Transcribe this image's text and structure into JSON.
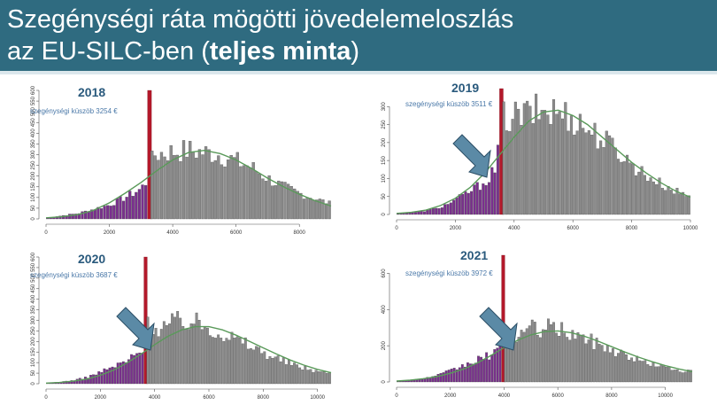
{
  "title": {
    "line1": "Szegénységi ráta mögötti jövedelemeloszlás",
    "line2_prefix": "az EU-SILC-ben (",
    "line2_bold": "teljes minta",
    "line2_suffix": ")"
  },
  "colors": {
    "banner": "#2f6b80",
    "below_threshold": "#7a2f8e",
    "above_threshold": "#8c8c8c",
    "threshold_bar": "#b3182a",
    "density_curve": "#5a9a5a",
    "arrow": "#5b8aa6"
  },
  "chart_data": [
    {
      "type": "bar",
      "year": "2018",
      "threshold_label": "szegénységi küszöb 3254 €",
      "threshold": 3254,
      "xlim": [
        0,
        9000
      ],
      "ylim": [
        0,
        600
      ],
      "x_ticks": [
        0,
        2000,
        4000,
        6000,
        8000
      ],
      "y_ticks": [
        0,
        50,
        100,
        150,
        200,
        250,
        300,
        350,
        400,
        450,
        500,
        550,
        600
      ],
      "bin_width": 100,
      "threshold_bar_value": 600,
      "arrow": false,
      "profile_x": [
        -200,
        500,
        1000,
        1500,
        2000,
        2500,
        3000,
        3200,
        3400,
        3800,
        4500,
        5000,
        5500,
        6000,
        6500,
        7000,
        7500,
        8000,
        8500,
        9000
      ],
      "profile_y": [
        0,
        15,
        25,
        45,
        65,
        100,
        140,
        180,
        300,
        310,
        320,
        310,
        300,
        270,
        240,
        190,
        150,
        120,
        95,
        70
      ],
      "curve_x": [
        0,
        500,
        1000,
        1500,
        2000,
        2500,
        3000,
        3500,
        4000,
        4500,
        5000,
        5500,
        6000,
        6500,
        7000,
        7500,
        8000,
        8500,
        9000
      ],
      "curve_y": [
        5,
        10,
        20,
        40,
        75,
        120,
        170,
        225,
        275,
        310,
        320,
        305,
        275,
        235,
        190,
        150,
        115,
        85,
        60
      ]
    },
    {
      "type": "bar",
      "year": "2019",
      "threshold_label": "szegénységi küszöb 3511 €",
      "threshold": 3511,
      "xlim": [
        0,
        10000
      ],
      "ylim": [
        0,
        350
      ],
      "x_ticks": [
        0,
        2000,
        4000,
        6000,
        8000,
        10000
      ],
      "y_ticks": [
        0,
        50,
        100,
        150,
        200,
        250,
        300
      ],
      "bin_width": 100,
      "threshold_bar_value": 350,
      "arrow": true,
      "profile_x": [
        -200,
        500,
        1000,
        1500,
        2000,
        2500,
        3000,
        3400,
        3600,
        4000,
        4500,
        5000,
        5500,
        6000,
        6500,
        7000,
        7500,
        8000,
        8500,
        9000,
        9500,
        10000
      ],
      "profile_y": [
        0,
        5,
        10,
        20,
        40,
        65,
        90,
        130,
        270,
        270,
        280,
        290,
        285,
        270,
        240,
        210,
        180,
        140,
        110,
        85,
        65,
        50
      ],
      "curve_x": [
        0,
        500,
        1000,
        1500,
        2000,
        2500,
        3000,
        3500,
        4000,
        4500,
        5000,
        5500,
        6000,
        6500,
        7000,
        7500,
        8000,
        8500,
        9000,
        9500,
        10000
      ],
      "curve_y": [
        3,
        6,
        12,
        25,
        45,
        75,
        115,
        165,
        215,
        260,
        285,
        290,
        275,
        250,
        215,
        180,
        145,
        115,
        88,
        65,
        48
      ]
    },
    {
      "type": "bar",
      "year": "2020",
      "threshold_label": "szegénységi küszöb 3687 €",
      "threshold": 3687,
      "xlim": [
        0,
        10500
      ],
      "ylim": [
        0,
        600
      ],
      "x_ticks": [
        0,
        2000,
        4000,
        6000,
        8000,
        10000
      ],
      "y_ticks": [
        0,
        50,
        100,
        150,
        200,
        250,
        300,
        350,
        400,
        450,
        500,
        550,
        600
      ],
      "bin_width": 100,
      "threshold_bar_value": 600,
      "arrow": true,
      "profile_x": [
        -200,
        500,
        1000,
        1500,
        2000,
        2500,
        3000,
        3500,
        3800,
        4000,
        4500,
        5000,
        5500,
        6000,
        6500,
        7000,
        7500,
        8000,
        8500,
        9000,
        9500,
        10000,
        10500
      ],
      "profile_y": [
        0,
        8,
        15,
        30,
        55,
        80,
        110,
        150,
        300,
        260,
        280,
        300,
        290,
        270,
        240,
        210,
        180,
        150,
        120,
        95,
        75,
        60,
        50
      ],
      "curve_x": [
        0,
        500,
        1000,
        1500,
        2000,
        2500,
        3000,
        3500,
        4000,
        4500,
        5000,
        5500,
        6000,
        6500,
        7000,
        7500,
        8000,
        8500,
        9000,
        9500,
        10000,
        10500
      ],
      "curve_y": [
        3,
        6,
        12,
        22,
        40,
        65,
        100,
        140,
        185,
        225,
        255,
        270,
        270,
        255,
        230,
        200,
        170,
        140,
        112,
        88,
        68,
        52
      ]
    },
    {
      "type": "bar",
      "year": "2021",
      "threshold_label": "szegénységi küszöb 3972 €",
      "threshold": 3972,
      "xlim": [
        0,
        11000
      ],
      "ylim": [
        0,
        700
      ],
      "x_ticks": [
        0,
        2000,
        4000,
        6000,
        8000,
        10000
      ],
      "y_ticks": [
        0,
        200,
        400,
        600
      ],
      "bin_width": 100,
      "threshold_bar_value": 700,
      "arrow": true,
      "profile_x": [
        -200,
        500,
        1000,
        1500,
        2000,
        2500,
        3000,
        3500,
        3900,
        4100,
        4500,
        5000,
        5500,
        6000,
        6500,
        7000,
        7500,
        8000,
        8500,
        9000,
        9500,
        10000,
        10500,
        11000
      ],
      "profile_y": [
        0,
        10,
        18,
        35,
        60,
        90,
        120,
        150,
        190,
        230,
        260,
        290,
        300,
        290,
        270,
        240,
        210,
        180,
        150,
        120,
        100,
        80,
        65,
        55
      ],
      "curve_x": [
        0,
        500,
        1000,
        1500,
        2000,
        2500,
        3000,
        3500,
        4000,
        4500,
        5000,
        5500,
        6000,
        6500,
        7000,
        7500,
        8000,
        8500,
        9000,
        9500,
        10000,
        10500,
        11000
      ],
      "curve_y": [
        5,
        10,
        18,
        30,
        48,
        72,
        105,
        145,
        190,
        230,
        260,
        278,
        282,
        272,
        252,
        225,
        195,
        165,
        137,
        112,
        90,
        72,
        57
      ]
    }
  ]
}
